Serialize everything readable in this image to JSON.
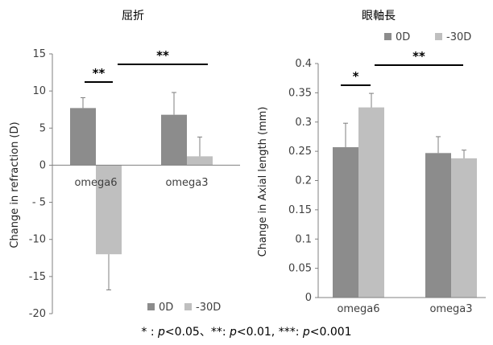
{
  "colors": {
    "series_0D": "#8c8c8c",
    "series_30D": "#bfbfbf",
    "axis": "#808080",
    "text": "#404040"
  },
  "footnote": {
    "part1": "* : ",
    "p1": "p",
    "part2": "<0.05、**: ",
    "p2": "p",
    "part3": "<0.01, ***: ",
    "p3": "p",
    "part4": "<0.001"
  },
  "chart_data": [
    {
      "type": "bar",
      "title": "屈折",
      "xlabel": "",
      "ylabel": "Change in refraction (D)",
      "ylim": [
        -20,
        15
      ],
      "yticks": [
        15,
        10,
        5,
        0,
        -5,
        -10,
        -15,
        -20
      ],
      "ytick_labels": [
        "15",
        "10",
        "5",
        "0",
        "- 5",
        "-10",
        "-15",
        "-20"
      ],
      "categories": [
        "omega6",
        "omega3"
      ],
      "series": [
        {
          "name": "0D",
          "values": [
            7.7,
            6.8
          ],
          "errors": [
            1.4,
            3.0
          ]
        },
        {
          "name": "-30D",
          "values": [
            -12.0,
            1.2
          ],
          "errors": [
            4.8,
            2.6
          ]
        }
      ],
      "legend": {
        "position": "bottom",
        "labels": [
          "0D",
          "-30D"
        ]
      },
      "significance": [
        {
          "label": "**",
          "between": "omega6 0D vs -30D"
        },
        {
          "label": "**",
          "between": "omega6 vs omega3"
        }
      ],
      "grid": false
    },
    {
      "type": "bar",
      "title": "眼軸長",
      "xlabel": "",
      "ylabel": "Change in Axial length (mm)",
      "ylim": [
        0,
        0.4
      ],
      "yticks": [
        0.4,
        0.35,
        0.3,
        0.25,
        0.2,
        0.15,
        0.1,
        0.05,
        0
      ],
      "ytick_labels": [
        "0.4",
        "0.35",
        "0.3",
        "0.25",
        "0.2",
        "0.15",
        "0.1",
        "0.05",
        "0"
      ],
      "categories": [
        "omega6",
        "omega3"
      ],
      "series": [
        {
          "name": "0D",
          "values": [
            0.257,
            0.247
          ],
          "errors": [
            0.041,
            0.028
          ]
        },
        {
          "name": "-30D",
          "values": [
            0.325,
            0.238
          ],
          "errors": [
            0.024,
            0.014
          ]
        }
      ],
      "legend": {
        "position": "top",
        "labels": [
          "0D",
          "-30D"
        ]
      },
      "significance": [
        {
          "label": "*",
          "between": "omega6 0D vs -30D"
        },
        {
          "label": "**",
          "between": "omega6 vs omega3"
        }
      ],
      "grid": false
    }
  ]
}
